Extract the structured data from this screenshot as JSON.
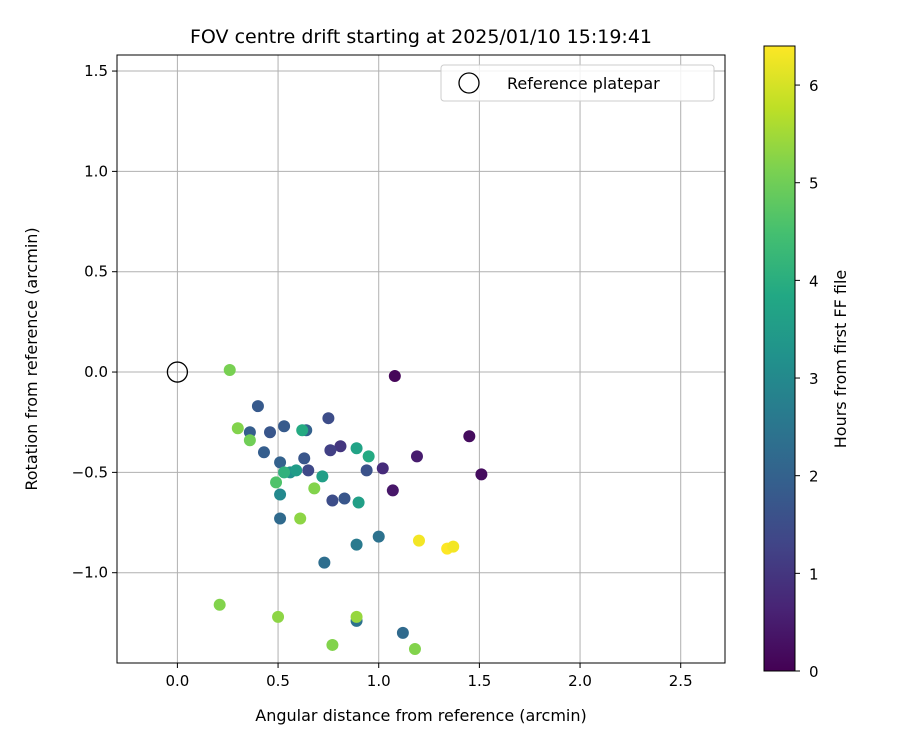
{
  "chart_data": {
    "type": "scatter",
    "title": "FOV centre drift starting at 2025/01/10 15:19:41",
    "xlabel": "Angular distance from reference (arcmin)",
    "ylabel": "Rotation from reference (arcmin)",
    "xlim": [
      -0.3,
      2.72
    ],
    "ylim": [
      -1.45,
      1.58
    ],
    "xticks": [
      0.0,
      0.5,
      1.0,
      1.5,
      2.0,
      2.5
    ],
    "xtick_labels": [
      "0.0",
      "0.5",
      "1.0",
      "1.5",
      "2.0",
      "2.5"
    ],
    "yticks": [
      1.5,
      1.0,
      0.5,
      0.0,
      -0.5,
      -1.0
    ],
    "ytick_labels": [
      "1.5",
      "1.0",
      "0.5",
      "0.0",
      "−0.5",
      "−1.0"
    ],
    "grid": true,
    "legend": {
      "placement": "top-right",
      "label": "Reference platepar"
    },
    "reference_point": {
      "x": 0.0,
      "y": 0.0
    },
    "colorbar": {
      "label": "Hours from first FF file",
      "colormap": "viridis",
      "range": [
        0,
        6.4
      ],
      "ticks": [
        0,
        1,
        2,
        3,
        4,
        5,
        6
      ],
      "tick_labels": [
        "0",
        "1",
        "2",
        "3",
        "4",
        "5",
        "6"
      ]
    },
    "points": [
      {
        "x": 1.08,
        "y": -0.02,
        "hours": 0.1
      },
      {
        "x": 1.45,
        "y": -0.32,
        "hours": 0.2
      },
      {
        "x": 1.51,
        "y": -0.51,
        "hours": 0.2
      },
      {
        "x": 1.19,
        "y": -0.42,
        "hours": 0.5
      },
      {
        "x": 1.07,
        "y": -0.59,
        "hours": 0.4
      },
      {
        "x": 1.02,
        "y": -0.48,
        "hours": 0.8
      },
      {
        "x": 0.81,
        "y": -0.37,
        "hours": 1.0
      },
      {
        "x": 0.76,
        "y": -0.39,
        "hours": 1.2
      },
      {
        "x": 0.94,
        "y": -0.49,
        "hours": 1.6
      },
      {
        "x": 0.75,
        "y": -0.23,
        "hours": 1.5
      },
      {
        "x": 0.65,
        "y": -0.49,
        "hours": 1.4
      },
      {
        "x": 0.63,
        "y": -0.43,
        "hours": 1.7
      },
      {
        "x": 0.77,
        "y": -0.64,
        "hours": 1.5
      },
      {
        "x": 0.83,
        "y": -0.63,
        "hours": 1.7
      },
      {
        "x": 0.4,
        "y": -0.17,
        "hours": 1.8
      },
      {
        "x": 0.36,
        "y": -0.3,
        "hours": 1.9
      },
      {
        "x": 0.46,
        "y": -0.3,
        "hours": 1.7
      },
      {
        "x": 0.53,
        "y": -0.27,
        "hours": 1.8
      },
      {
        "x": 0.43,
        "y": -0.4,
        "hours": 1.9
      },
      {
        "x": 0.51,
        "y": -0.45,
        "hours": 2.0
      },
      {
        "x": 0.64,
        "y": -0.29,
        "hours": 2.0
      },
      {
        "x": 0.51,
        "y": -0.73,
        "hours": 2.2
      },
      {
        "x": 1.0,
        "y": -0.82,
        "hours": 2.4
      },
      {
        "x": 0.89,
        "y": -0.86,
        "hours": 2.6
      },
      {
        "x": 0.73,
        "y": -0.95,
        "hours": 2.3
      },
      {
        "x": 0.89,
        "y": -1.24,
        "hours": 2.4
      },
      {
        "x": 1.12,
        "y": -1.3,
        "hours": 2.2
      },
      {
        "x": 0.51,
        "y": -0.61,
        "hours": 3.0
      },
      {
        "x": 0.56,
        "y": -0.5,
        "hours": 3.2
      },
      {
        "x": 0.59,
        "y": -0.49,
        "hours": 3.5
      },
      {
        "x": 0.72,
        "y": -0.52,
        "hours": 3.6
      },
      {
        "x": 0.9,
        "y": -0.65,
        "hours": 3.6
      },
      {
        "x": 0.89,
        "y": -0.38,
        "hours": 3.7
      },
      {
        "x": 0.95,
        "y": -0.42,
        "hours": 3.9
      },
      {
        "x": 0.62,
        "y": -0.29,
        "hours": 3.9
      },
      {
        "x": 0.53,
        "y": -0.5,
        "hours": 4.1
      },
      {
        "x": 0.49,
        "y": -0.55,
        "hours": 4.6
      },
      {
        "x": 0.26,
        "y": 0.01,
        "hours": 5.1
      },
      {
        "x": 0.3,
        "y": -0.28,
        "hours": 5.2
      },
      {
        "x": 0.36,
        "y": -0.34,
        "hours": 5.0
      },
      {
        "x": 0.68,
        "y": -0.58,
        "hours": 5.2
      },
      {
        "x": 0.61,
        "y": -0.73,
        "hours": 5.3
      },
      {
        "x": 0.21,
        "y": -1.16,
        "hours": 5.2
      },
      {
        "x": 0.5,
        "y": -1.22,
        "hours": 5.3
      },
      {
        "x": 0.89,
        "y": -1.22,
        "hours": 5.4
      },
      {
        "x": 0.77,
        "y": -1.36,
        "hours": 5.2
      },
      {
        "x": 1.18,
        "y": -1.38,
        "hours": 5.2
      },
      {
        "x": 1.2,
        "y": -0.84,
        "hours": 6.3
      },
      {
        "x": 1.34,
        "y": -0.88,
        "hours": 6.4
      },
      {
        "x": 1.37,
        "y": -0.87,
        "hours": 6.3
      }
    ]
  }
}
